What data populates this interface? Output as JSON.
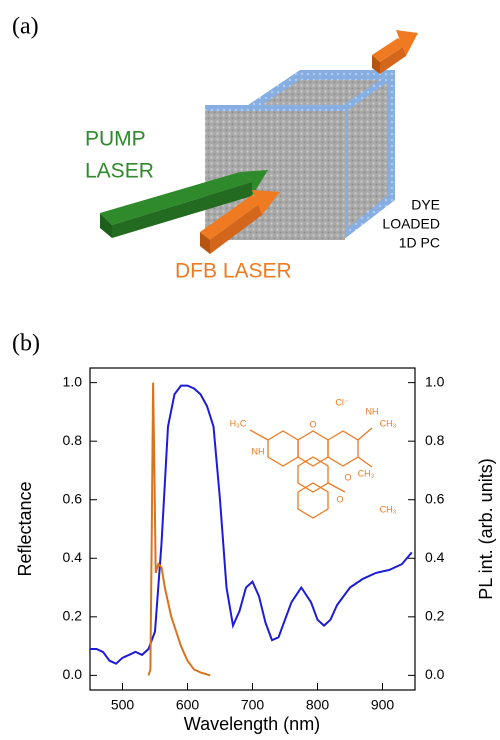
{
  "panel_a": {
    "label": "(a)",
    "pump_label": [
      "PUMP",
      "LASER"
    ],
    "dfb_label": "DFB LASER",
    "sample_label": [
      "DYE",
      "LOADED",
      "1D PC"
    ]
  },
  "chart_data": {
    "type": "line",
    "panel_label": "(b)",
    "xlabel": "Wavelength (nm)",
    "ylabel": "Reflectance",
    "y2label": "PL int. (arb. units)",
    "molecule_labels": [
      "H₃C",
      "NH",
      "Cl⁻",
      "NH",
      "CH₃",
      "O",
      "CH₃",
      "O",
      "O",
      "CH₃"
    ],
    "xlim": [
      450,
      950
    ],
    "xticks": [
      500,
      600,
      700,
      800,
      900
    ],
    "ylim": [
      -0.05,
      1.05
    ],
    "yticks": [
      {
        "value": 0,
        "label": "0.0"
      },
      {
        "value": 0.2,
        "label": "0.2"
      },
      {
        "value": 0.4,
        "label": "0.4"
      },
      {
        "value": 0.6,
        "label": "0.6"
      },
      {
        "value": 0.8,
        "label": "0.8"
      },
      {
        "value": 1,
        "label": "1.0"
      }
    ],
    "y2lim": [
      -0.05,
      1.05
    ],
    "y2ticks": [
      {
        "value": 0,
        "label": "0.0"
      },
      {
        "value": 0.2,
        "label": "0.2"
      },
      {
        "value": 0.4,
        "label": "0.4"
      },
      {
        "value": 0.6,
        "label": "0.6"
      },
      {
        "value": 0.8,
        "label": "0.8"
      },
      {
        "value": 1,
        "label": "1.0"
      }
    ],
    "series": [
      {
        "color": "#1c1cd6",
        "x": [
          450,
          460,
          470,
          480,
          490,
          500,
          510,
          520,
          530,
          540,
          550,
          560,
          570,
          580,
          590,
          600,
          610,
          620,
          630,
          640,
          650,
          660,
          670,
          680,
          690,
          700,
          710,
          720,
          730,
          740,
          750,
          760,
          775,
          790,
          800,
          810,
          820,
          830,
          850,
          870,
          890,
          910,
          930,
          945
        ],
        "values": [
          0.09,
          0.09,
          0.08,
          0.05,
          0.04,
          0.06,
          0.07,
          0.08,
          0.07,
          0.09,
          0.15,
          0.45,
          0.85,
          0.96,
          0.99,
          0.99,
          0.98,
          0.96,
          0.92,
          0.85,
          0.6,
          0.3,
          0.17,
          0.22,
          0.3,
          0.32,
          0.27,
          0.18,
          0.12,
          0.13,
          0.19,
          0.25,
          0.3,
          0.25,
          0.19,
          0.17,
          0.19,
          0.24,
          0.3,
          0.33,
          0.35,
          0.36,
          0.38,
          0.42
        ]
      },
      {
        "color": "#d9731f",
        "axis": "y2",
        "x": [
          540,
          543,
          545,
          547,
          549,
          551,
          555,
          560,
          565,
          575,
          590,
          600,
          610,
          620,
          635
        ],
        "values": [
          0.0,
          0.02,
          0.5,
          1.0,
          0.7,
          0.35,
          0.38,
          0.37,
          0.3,
          0.2,
          0.1,
          0.05,
          0.02,
          0.01,
          0.0
        ]
      }
    ]
  }
}
